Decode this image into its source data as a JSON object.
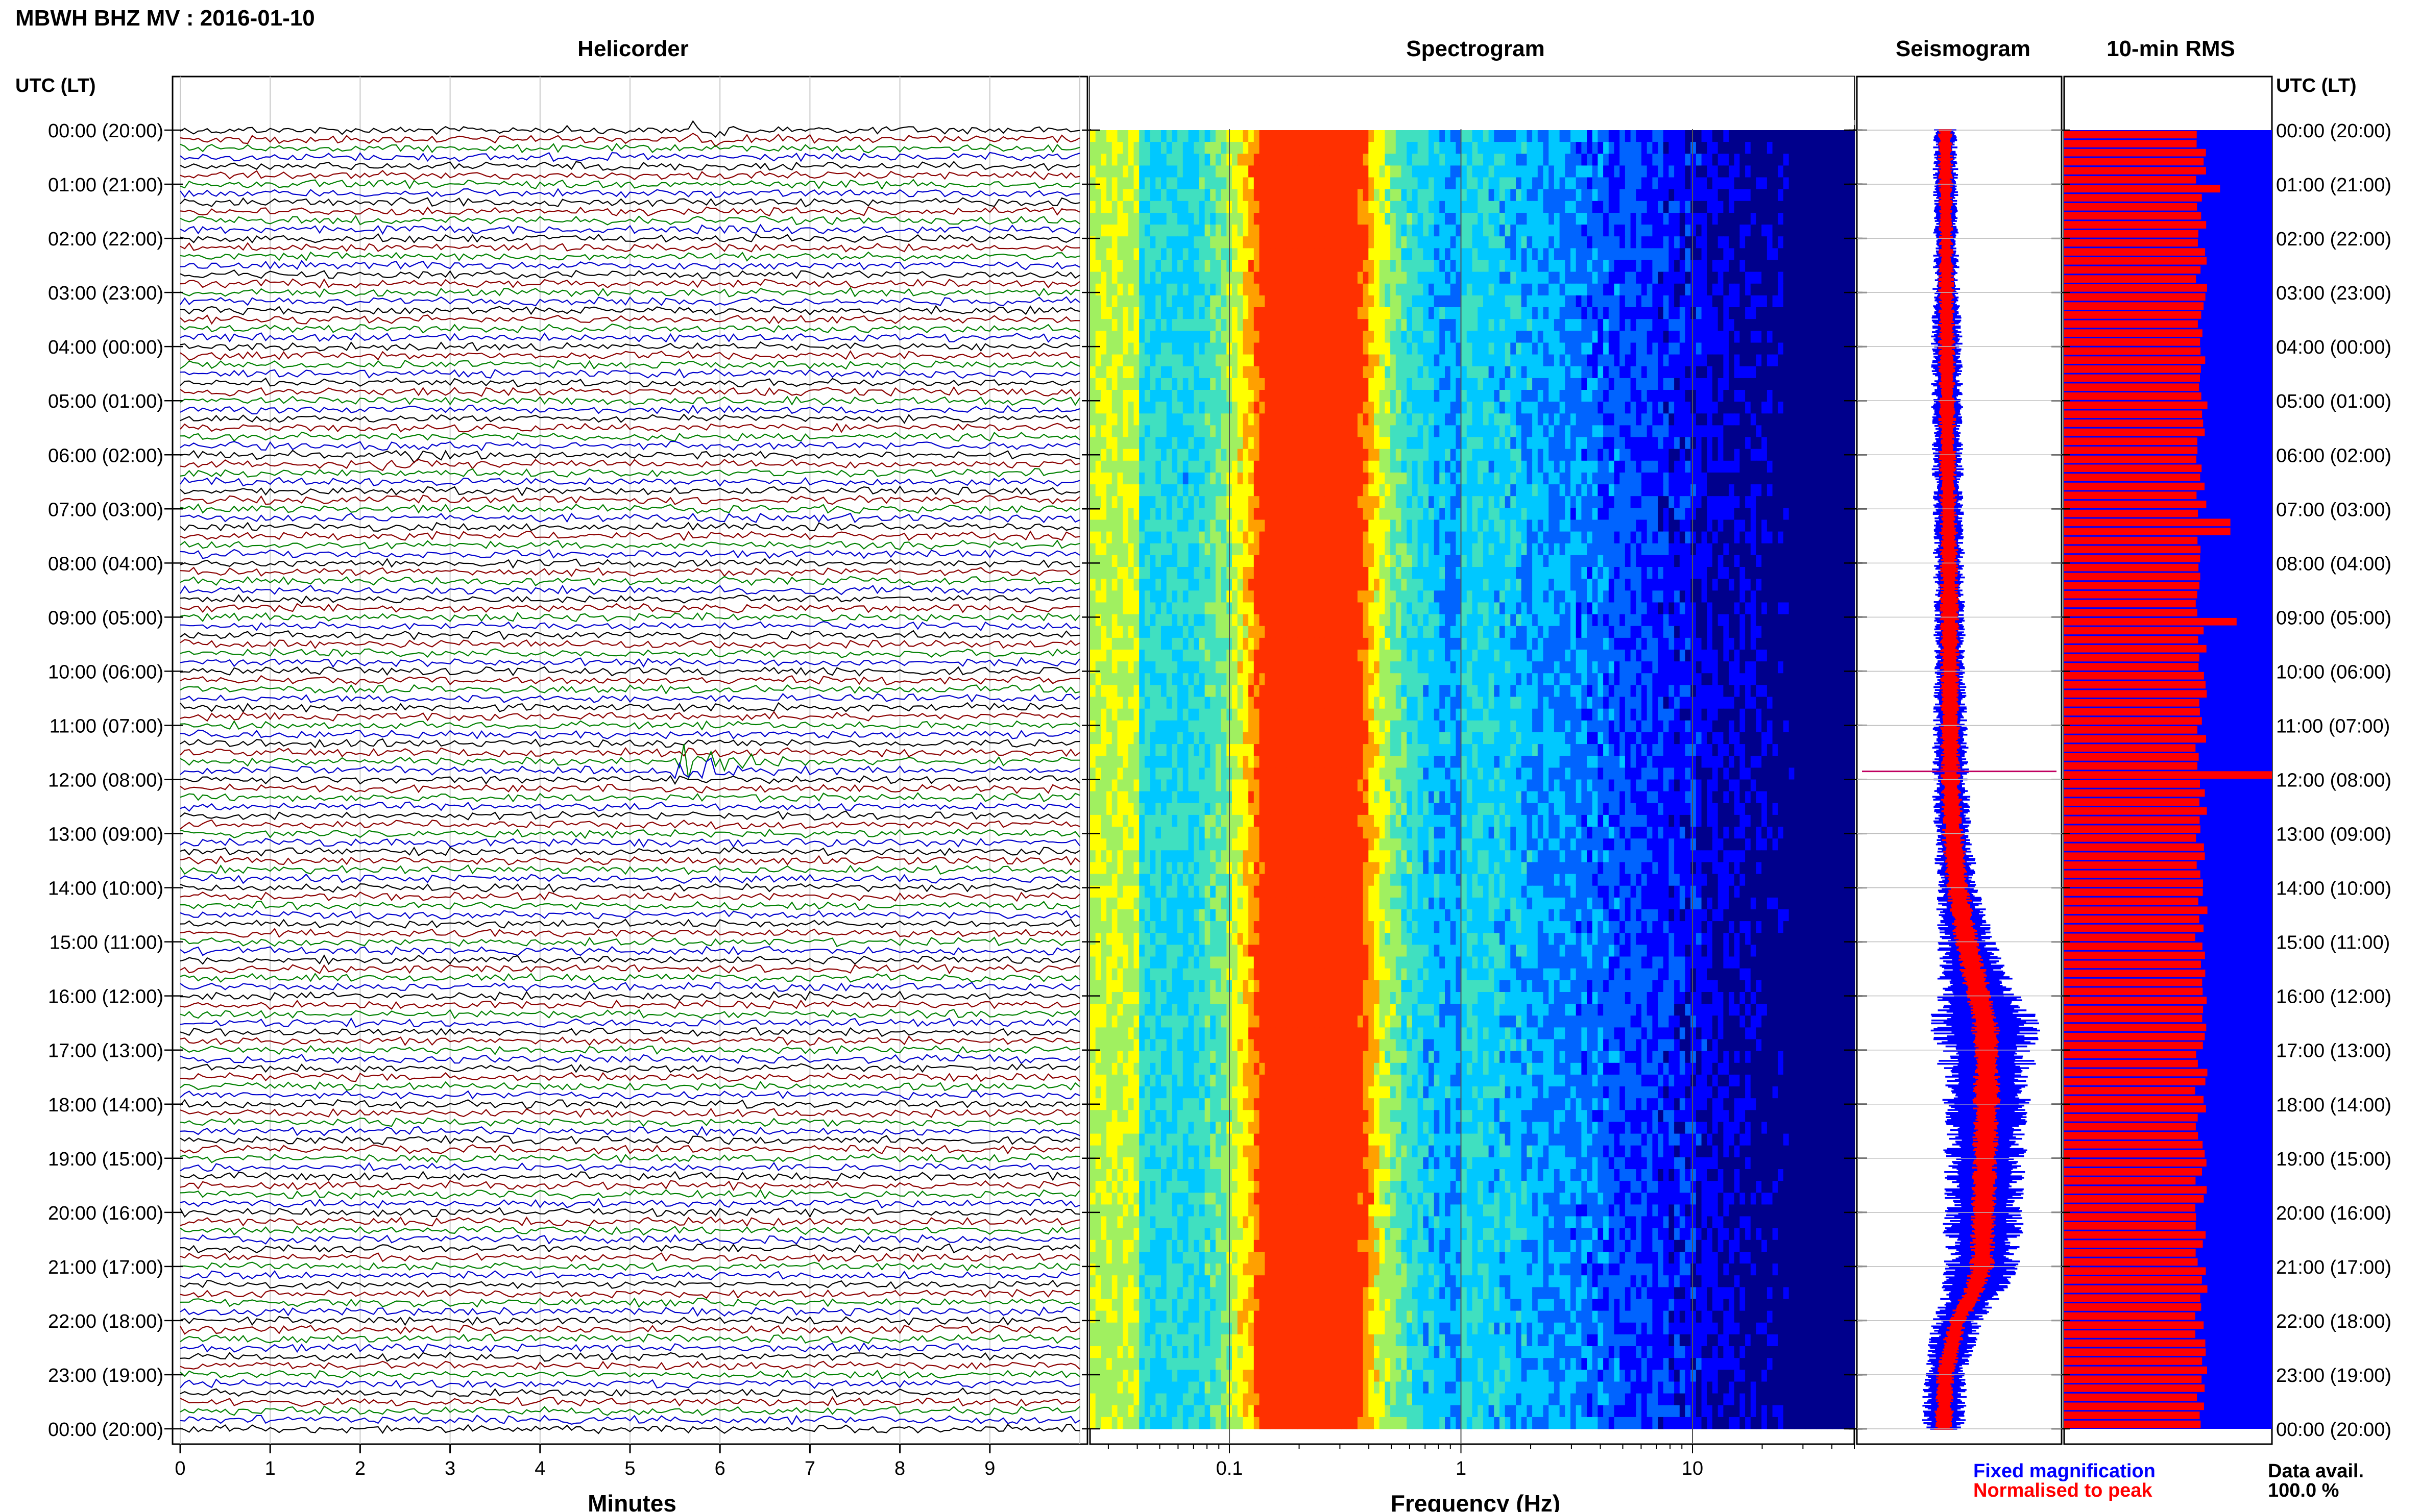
{
  "figure": {
    "title": "MBWH BHZ MV : 2016-01-10",
    "left_axis_header": "UTC (LT)",
    "right_axis_header": "UTC (LT)",
    "data_avail_label": "Data avail.",
    "data_avail_value": "100.0 %"
  },
  "panels": {
    "helicorder": {
      "title": "Helicorder",
      "xlabel": "Minutes"
    },
    "spectrogram": {
      "title": "Spectrogram",
      "xlabel": "Frequency (Hz)"
    },
    "seismogram": {
      "title": "Seismogram"
    },
    "rms": {
      "title": "10-min RMS"
    }
  },
  "legend": [
    {
      "label": "Fixed magnification",
      "color": "#0000ff"
    },
    {
      "label": "Normalised to peak",
      "color": "#ff0000"
    }
  ],
  "colors": {
    "trace_cycle": [
      "#000000",
      "#8b0000",
      "#008000",
      "#0000cd"
    ],
    "rms_background": "#0000ff",
    "rms_bars": "#ff0000",
    "seismogram_fixed": "#0000ff",
    "seismogram_normalised": "#ff0000"
  },
  "chart_data": [
    {
      "type": "line",
      "name": "helicorder",
      "title": "Helicorder",
      "xlabel": "Minutes",
      "x_ticks": [
        "0",
        "1",
        "2",
        "3",
        "4",
        "5",
        "6",
        "7",
        "8",
        "9"
      ],
      "xlim": [
        0,
        10
      ],
      "rows_per_hour": 6,
      "y_ticks": [
        "00:00 (20:00)",
        "01:00 (21:00)",
        "02:00 (22:00)",
        "03:00 (23:00)",
        "04:00 (00:00)",
        "05:00 (01:00)",
        "06:00 (02:00)",
        "07:00 (03:00)",
        "08:00 (04:00)",
        "09:00 (05:00)",
        "10:00 (06:00)",
        "11:00 (07:00)",
        "12:00 (08:00)",
        "13:00 (09:00)",
        "14:00 (10:00)",
        "15:00 (11:00)",
        "16:00 (12:00)",
        "17:00 (13:00)",
        "18:00 (14:00)",
        "19:00 (15:00)",
        "20:00 (16:00)",
        "21:00 (17:00)",
        "22:00 (18:00)",
        "23:00 (19:00)",
        "00:00 (20:00)"
      ],
      "events": [
        {
          "hour": 11.72,
          "minute": 5.8,
          "amplitude": 4.0
        },
        {
          "hour": 6.0,
          "minute": 2.5,
          "amplitude": 1.4
        },
        {
          "hour": 0.05,
          "minute": 5.9,
          "amplitude": 1.3
        }
      ]
    },
    {
      "type": "heatmap",
      "name": "spectrogram",
      "title": "Spectrogram",
      "xlabel": "Frequency (Hz)",
      "x_scale": "log",
      "xlim": [
        0.025,
        50
      ],
      "x_ticks": [
        "0.1",
        "1",
        "10"
      ],
      "y_ticks_hours": [
        0,
        1,
        2,
        3,
        4,
        5,
        6,
        7,
        8,
        9,
        10,
        11,
        12,
        13,
        14,
        15,
        16,
        17,
        18,
        19,
        20,
        21,
        22,
        23,
        24
      ],
      "peak_frequency_hz": 0.22,
      "colormap": [
        "#00008c",
        "#0000ff",
        "#0064ff",
        "#00c8ff",
        "#40e0c0",
        "#a0f060",
        "#ffff00",
        "#ffa000",
        "#ff3000"
      ]
    },
    {
      "type": "line",
      "name": "seismogram",
      "title": "Seismogram",
      "series": [
        {
          "name": "Fixed magnification",
          "color": "#0000ff"
        },
        {
          "name": "Normalised to peak",
          "color": "#ff0000"
        }
      ],
      "hours": [
        0,
        2,
        4,
        6,
        8,
        10,
        12,
        13,
        14,
        15,
        16,
        16.5,
        17,
        18,
        19,
        20,
        21,
        21.5,
        22,
        23,
        24
      ],
      "center_offset": [
        0,
        0.5,
        1,
        1.5,
        2.5,
        3,
        3.5,
        5,
        8,
        14,
        22,
        26,
        27,
        27,
        26,
        25,
        24,
        18,
        8,
        0,
        -1
      ],
      "half_width_fixed": [
        2,
        2,
        2.5,
        2.5,
        2.5,
        2.5,
        3,
        3,
        3.5,
        4.5,
        7,
        9,
        8,
        7,
        6.5,
        6.5,
        6,
        5,
        4,
        3.5,
        3.5
      ],
      "half_width_normalised": [
        1.2,
        1.2,
        1.4,
        1.4,
        1.5,
        1.6,
        1.6,
        1.8,
        1.9,
        2.0,
        2.2,
        2.4,
        2.2,
        2.2,
        2.1,
        2.0,
        2.0,
        1.8,
        1.6,
        1.5,
        1.5
      ],
      "spike_hour": 11.85
    },
    {
      "type": "bar",
      "name": "rms",
      "title": "10-min RMS",
      "orientation": "horizontal",
      "bins": 144,
      "bin_minutes": 10,
      "relative_max": 1.0,
      "typical_relative_rms": 0.66,
      "peaks": [
        {
          "hour": 11.83,
          "value": 1.0
        },
        {
          "hour": 9.0,
          "value": 0.83
        },
        {
          "hour": 7.25,
          "value": 0.8
        },
        {
          "hour": 1.0,
          "value": 0.75
        }
      ]
    }
  ]
}
